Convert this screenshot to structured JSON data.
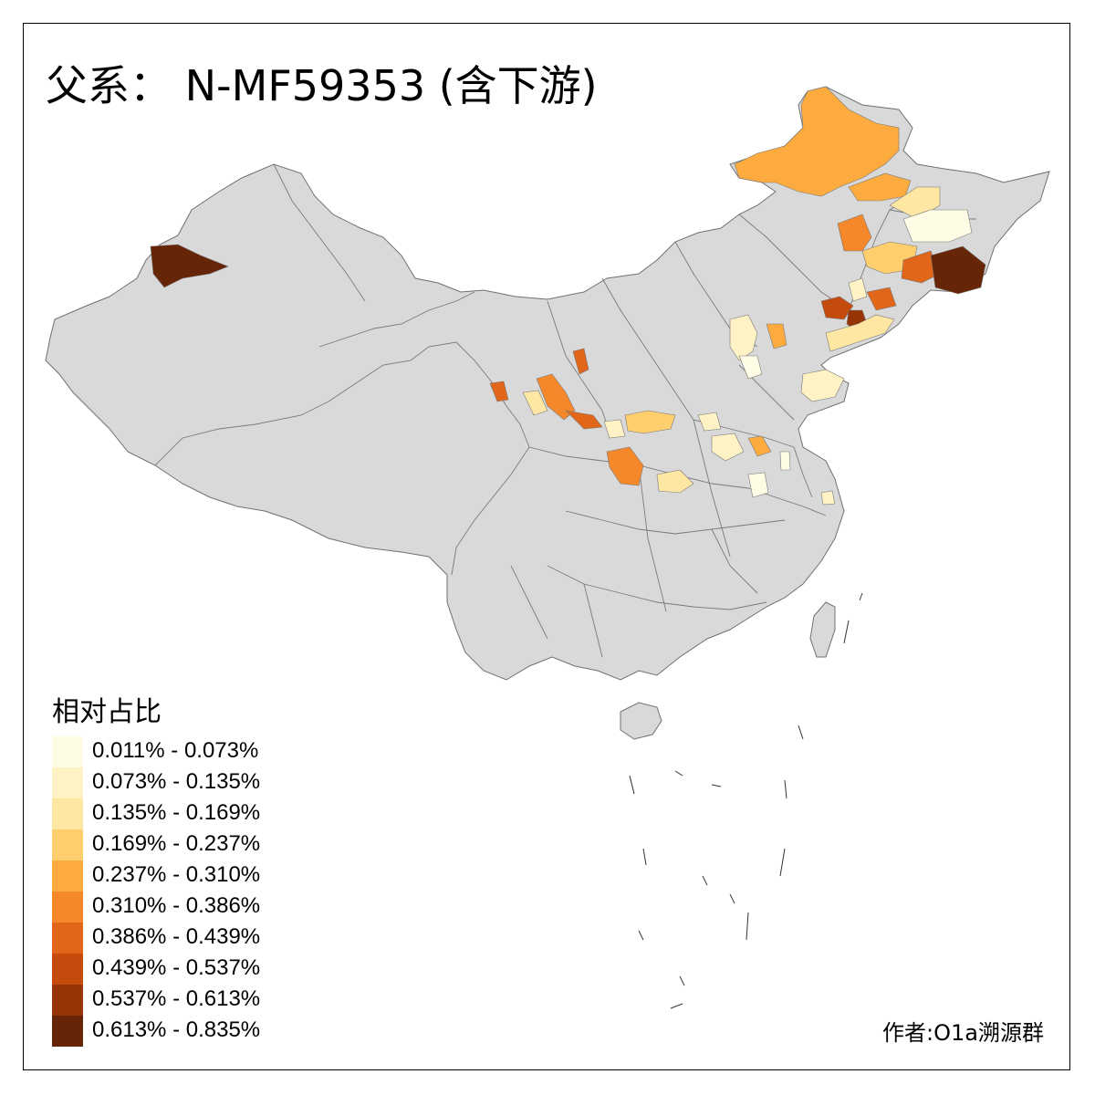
{
  "title": "父系： N-MF59353 (含下游)",
  "legend": {
    "title": "相对占比",
    "items": [
      {
        "label": "0.011% - 0.073%",
        "color": "#fffce6"
      },
      {
        "label": "0.073% - 0.135%",
        "color": "#fff2c4"
      },
      {
        "label": "0.135% - 0.169%",
        "color": "#fee6a3"
      },
      {
        "label": "0.169% - 0.237%",
        "color": "#fecf6c"
      },
      {
        "label": "0.237% - 0.310%",
        "color": "#fdab3f"
      },
      {
        "label": "0.310% - 0.386%",
        "color": "#f5882a"
      },
      {
        "label": "0.386% - 0.439%",
        "color": "#e2661a"
      },
      {
        "label": "0.439% - 0.537%",
        "color": "#c54b0d"
      },
      {
        "label": "0.537% - 0.613%",
        "color": "#963406"
      },
      {
        "label": "0.613% - 0.835%",
        "color": "#662506"
      }
    ]
  },
  "credit": "作者:O1a溯源群",
  "colors": {
    "base_region": "#d9d9d9",
    "border": "#7a7a7a",
    "frame": "#000000"
  }
}
